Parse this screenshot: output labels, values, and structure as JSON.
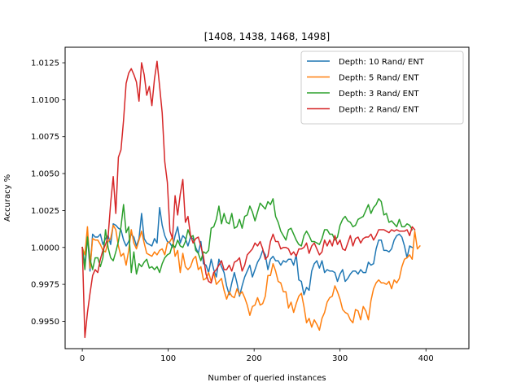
{
  "chart_data": {
    "type": "line",
    "title": "[1408, 1438, 1468, 1498]",
    "xlabel": "Number of queried instances",
    "ylabel": "Accuracy %",
    "xlim": [
      -20,
      450
    ],
    "ylim": [
      0.99315,
      1.01355
    ],
    "xticks": [
      0,
      100,
      200,
      300,
      400
    ],
    "xtick_labels": [
      "0",
      "100",
      "200",
      "300",
      "400"
    ],
    "yticks": [
      0.995,
      0.9975,
      1.0,
      1.0025,
      1.005,
      1.0075,
      1.01,
      1.0125
    ],
    "ytick_labels": [
      "0.9950",
      "0.9975",
      "1.0000",
      "1.0025",
      "1.0050",
      "1.0075",
      "1.0100",
      "1.0125"
    ],
    "grid": false,
    "legend_position": "top-right",
    "x_step": 3,
    "series": [
      {
        "name": "Depth: 10 Rand/ ENT",
        "color": "#1f77b4",
        "values": [
          1.0,
          0.9988,
          1.0008,
          0.9984,
          1.0009,
          1.0007,
          1.0007,
          1.0009,
          1.0002,
          1.0006,
          1.0008,
          1.0002,
          1.0016,
          1.0015,
          1.0013,
          1.0012,
          1.0005,
          1.0001,
          1.0004,
          1.0009,
          1.0007,
          1.0001,
          1.0006,
          1.0023,
          1.0006,
          1.0003,
          1.0002,
          1.0001,
          1.0006,
          1.0003,
          1.0027,
          1.0015,
          1.0008,
          1.0004,
          1.0003,
          1.0,
          1.0008,
          1.0014,
          1.0003,
          1.0008,
          1.0006,
          1.0001,
          1.0007,
          1.0006,
          1.0,
          0.9996,
          1.0004,
          0.9989,
          0.9988,
          0.9983,
          0.9992,
          0.9985,
          0.998,
          0.9992,
          0.9987,
          0.9983,
          0.9974,
          0.9968,
          0.9976,
          0.9983,
          0.9976,
          0.9967,
          0.9974,
          0.998,
          0.9984,
          0.9988,
          0.998,
          0.9985,
          0.999,
          0.9993,
          0.9998,
          0.9995,
          0.9985,
          0.9992,
          0.9994,
          0.9991,
          0.9991,
          0.9988,
          0.9991,
          0.999,
          0.9992,
          0.9992,
          0.9988,
          0.9995,
          0.9978,
          0.9977,
          0.9968,
          0.9973,
          0.9971,
          0.9984,
          0.9989,
          0.9991,
          0.9986,
          0.9991,
          0.9983,
          0.9985,
          0.9984,
          0.9984,
          0.9983,
          0.9977,
          0.9982,
          0.9985,
          0.9977,
          0.9979,
          0.9982,
          0.9984,
          0.9984,
          0.9982,
          0.9985,
          0.9983,
          0.9983,
          0.999,
          0.9988,
          0.9989,
          0.9999,
          1.0005,
          1.0005,
          0.9998,
          0.9998,
          0.9997,
          0.9999,
          1.0005,
          1.0008,
          1.0009,
          1.0007,
          1.0001,
          0.9993,
          1.0001,
          1.0
        ]
      },
      {
        "name": "Depth: 5 Rand/ ENT",
        "color": "#ff7f0e",
        "values": [
          1.0,
          0.9995,
          1.0014,
          0.9986,
          1.0006,
          1.0005,
          1.0005,
          1.0002,
          0.9998,
          0.9997,
          1.0004,
          1.0006,
          1.0015,
          1.0012,
          1.0001,
          0.9994,
          0.9996,
          0.9988,
          0.9998,
          1.0012,
          1.0003,
          0.9999,
          1.0005,
          1.0011,
          1.0003,
          0.9996,
          0.9995,
          0.9994,
          0.9997,
          0.9995,
          0.9998,
          0.9999,
          0.9995,
          1.0003,
          1.0004,
          1.0007,
          0.9994,
          0.9998,
          0.9983,
          0.9996,
          0.9987,
          0.9985,
          0.9987,
          0.9992,
          0.9994,
          0.9985,
          0.9987,
          0.9978,
          0.9979,
          0.9983,
          0.9977,
          0.9983,
          0.9975,
          0.9977,
          0.9979,
          0.9971,
          0.9965,
          0.997,
          0.9967,
          0.9966,
          0.9972,
          0.9968,
          0.997,
          0.9966,
          0.9961,
          0.9954,
          0.996,
          0.9961,
          0.9966,
          0.9961,
          0.9962,
          0.9967,
          0.9981,
          0.9981,
          0.9989,
          0.9984,
          0.9977,
          0.9976,
          0.997,
          0.997,
          0.9959,
          0.9963,
          0.9956,
          0.9962,
          0.9967,
          0.9969,
          0.996,
          0.9949,
          0.9952,
          0.9946,
          0.9951,
          0.9948,
          0.9944,
          0.9952,
          0.9956,
          0.9963,
          0.9966,
          0.9967,
          0.9974,
          0.997,
          0.9965,
          0.9958,
          0.9956,
          0.9955,
          0.9951,
          0.9949,
          0.9958,
          0.9957,
          0.9951,
          0.996,
          0.9957,
          0.9951,
          0.9964,
          0.9972,
          0.9976,
          0.9978,
          0.9976,
          0.9976,
          0.9975,
          0.9977,
          0.9972,
          0.9978,
          0.9976,
          0.9979,
          0.9987,
          0.9992,
          0.9993,
          0.9995,
          0.9992,
          1.0011,
          0.9999,
          1.0001
        ]
      },
      {
        "name": "Depth: 3 Rand/ ENT",
        "color": "#2ca02c",
        "values": [
          1.0,
          0.9985,
          1.0007,
          0.9992,
          0.9985,
          0.9993,
          0.9993,
          0.9987,
          0.9993,
          1.0012,
          1.0,
          0.9993,
          0.9991,
          0.9997,
          1.0004,
          1.0014,
          1.0029,
          1.001,
          1.0014,
          0.9983,
          0.9997,
          0.9982,
          0.9989,
          0.9987,
          0.999,
          0.9992,
          0.9986,
          0.9987,
          0.9985,
          0.9987,
          0.9983,
          0.9989,
          0.9993,
          0.9995,
          0.9996,
          1.0002,
          1.0,
          1.0005,
          1.0001,
          1.0,
          1.0004,
          1.0012,
          1.0007,
          1.0008,
          0.9998,
          0.9996,
          0.9991,
          0.9997,
          0.9996,
          0.9998,
          1.0013,
          1.0014,
          1.0019,
          1.0028,
          1.0016,
          1.0023,
          1.0017,
          1.0016,
          1.0023,
          1.0013,
          1.0014,
          1.0019,
          1.0013,
          1.0021,
          1.0022,
          1.0028,
          1.0024,
          1.0018,
          1.0024,
          1.003,
          1.0028,
          1.0026,
          1.0031,
          1.0029,
          1.0033,
          1.0021,
          1.0017,
          1.0011,
          1.0008,
          1.0005,
          1.0012,
          1.0013,
          1.0009,
          1.0005,
          1.0002,
          1.0001,
          1.0008,
          1.0011,
          1.0008,
          1.0004,
          1.0004,
          1.0003,
          1.0002,
          1.0006,
          1.0012,
          1.0012,
          1.0009,
          1.0009,
          1.0005,
          1.0007,
          1.0015,
          1.0019,
          1.0021,
          1.0018,
          1.0017,
          1.0014,
          1.0015,
          1.0019,
          1.002,
          1.0021,
          1.0025,
          1.0029,
          1.0023,
          1.0027,
          1.0029,
          1.0033,
          1.0031,
          1.0022,
          1.0023,
          1.0017,
          1.0018,
          1.0016,
          1.0014,
          1.0019,
          1.0014,
          1.0014,
          1.0016,
          1.0015,
          1.0012
        ]
      },
      {
        "name": "Depth: 2 Rand/ ENT",
        "color": "#d62728",
        "values": [
          1.0,
          0.9939,
          0.9956,
          0.9969,
          0.9981,
          0.9985,
          0.9983,
          0.9992,
          0.9998,
          1.0002,
          1.0007,
          1.003,
          1.0048,
          1.0023,
          1.0061,
          1.0066,
          1.0086,
          1.0111,
          1.0118,
          1.0121,
          1.0117,
          1.0112,
          1.0099,
          1.0125,
          1.0117,
          1.0103,
          1.0109,
          1.0096,
          1.0114,
          1.0126,
          1.0109,
          1.0091,
          1.0058,
          1.0044,
          1.0011,
          1.0006,
          1.0035,
          1.0022,
          1.0036,
          1.0046,
          1.0017,
          1.0021,
          1.0008,
          1.0003,
          1.0006,
          1.0007,
          1.0001,
          0.9994,
          0.9982,
          0.9977,
          0.9976,
          0.9983,
          0.9985,
          0.9988,
          0.9991,
          0.9985,
          0.9985,
          0.9988,
          0.9984,
          0.999,
          0.9991,
          0.9993,
          0.9984,
          0.9988,
          0.9995,
          0.9997,
          0.9999,
          1.0003,
          1.0001,
          1.0004,
          0.9999,
          0.9992,
          0.9994,
          1.0004,
          1.0009,
          1.0004,
          1.0004,
          0.9999,
          1.0,
          1.0,
          0.9999,
          0.9995,
          0.9997,
          0.9994,
          0.9999,
          0.9999,
          1.0,
          1.0003,
          0.9996,
          1.0001,
          1.0003,
          0.9999,
          0.9995,
          0.9997,
          1.0005,
          1.0001,
          1.0005,
          1.0001,
          1.0008,
          1.0002,
          1.0005,
          0.9999,
          0.9998,
          1.0003,
          1.0008,
          1.0001,
          1.0006,
          1.0007,
          1.0003,
          1.0006,
          1.0007,
          1.0007,
          1.0009,
          1.0005,
          1.0008,
          1.0012,
          1.0012,
          1.0012,
          1.0011,
          1.001,
          1.0012,
          1.0011,
          1.0012,
          1.0011,
          1.0011,
          1.0011,
          1.0012,
          1.0008,
          1.0014,
          1.0012
        ]
      }
    ]
  }
}
